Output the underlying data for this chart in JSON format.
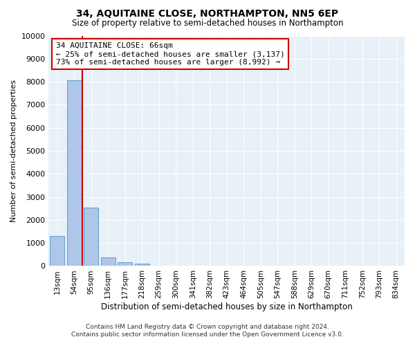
{
  "title": "34, AQUITAINE CLOSE, NORTHAMPTON, NN5 6EP",
  "subtitle": "Size of property relative to semi-detached houses in Northampton",
  "xlabel": "Distribution of semi-detached houses by size in Northampton",
  "ylabel": "Number of semi-detached properties",
  "categories": [
    "13sqm",
    "54sqm",
    "95sqm",
    "136sqm",
    "177sqm",
    "218sqm",
    "259sqm",
    "300sqm",
    "341sqm",
    "382sqm",
    "423sqm",
    "464sqm",
    "505sqm",
    "547sqm",
    "588sqm",
    "629sqm",
    "670sqm",
    "711sqm",
    "752sqm",
    "793sqm",
    "834sqm"
  ],
  "bar_values": [
    1320,
    8050,
    2530,
    380,
    155,
    105,
    0,
    0,
    0,
    0,
    0,
    0,
    0,
    0,
    0,
    0,
    0,
    0,
    0,
    0,
    0
  ],
  "bar_color": "#aec6e8",
  "bar_edgecolor": "#5a9fd4",
  "property_line_x": 1.5,
  "annotation_text": "34 AQUITAINE CLOSE: 66sqm\n← 25% of semi-detached houses are smaller (3,137)\n73% of semi-detached houses are larger (8,992) →",
  "box_facecolor": "#ffffff",
  "box_edgecolor": "#cc0000",
  "line_color": "#cc0000",
  "ylim": [
    0,
    10000
  ],
  "yticks": [
    0,
    1000,
    2000,
    3000,
    4000,
    5000,
    6000,
    7000,
    8000,
    9000,
    10000
  ],
  "footer_line1": "Contains HM Land Registry data © Crown copyright and database right 2024.",
  "footer_line2": "Contains public sector information licensed under the Open Government Licence v3.0.",
  "plot_background": "#e8f0f8",
  "fig_background": "#ffffff"
}
